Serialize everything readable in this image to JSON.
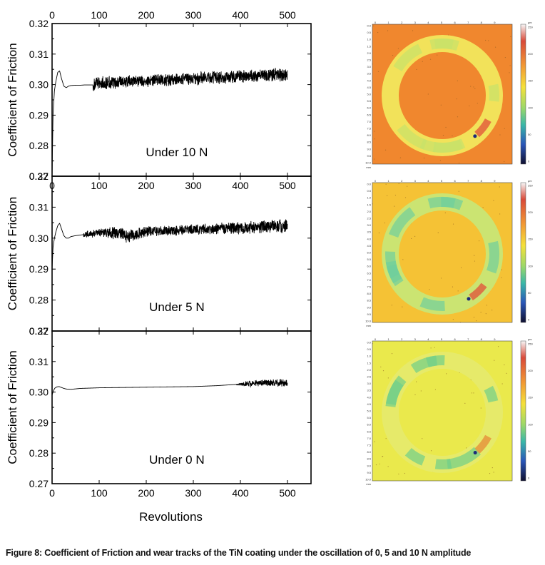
{
  "chart_data": [
    {
      "type": "line",
      "annotation": "Under 10 N",
      "ylabel": "Coefficient of Friction",
      "xlabel": "",
      "top_axis": true,
      "x_ticks": [
        "0",
        "100",
        "200",
        "300",
        "400",
        "500"
      ],
      "y_ticks": [
        "0.27",
        "0.28",
        "0.29",
        "0.30",
        "0.31",
        "0.32"
      ],
      "xlim": [
        0,
        550
      ],
      "ylim": [
        0.27,
        0.32
      ],
      "series": [
        {
          "x": [
            0,
            2,
            5,
            8,
            12,
            16,
            20,
            25,
            30,
            35,
            40,
            50,
            60,
            70,
            80,
            90,
            100,
            150,
            200,
            250,
            300,
            350,
            400,
            450,
            500
          ],
          "y": [
            0.27,
            0.29,
            0.298,
            0.301,
            0.304,
            0.3045,
            0.302,
            0.2995,
            0.299,
            0.2995,
            0.2997,
            0.2998,
            0.2998,
            0.2999,
            0.2999,
            0.2999,
            0.3005,
            0.3008,
            0.3012,
            0.3016,
            0.3019,
            0.3023,
            0.3026,
            0.303,
            0.3033
          ],
          "noise_from": 95,
          "noise_amplitude": [
            [
              95,
              0.0025
            ],
            [
              200,
              0.0022
            ],
            [
              300,
              0.0025
            ],
            [
              400,
              0.0023
            ],
            [
              500,
              0.0025
            ]
          ]
        }
      ]
    },
    {
      "type": "line",
      "annotation": "Under 5 N",
      "ylabel": "Coefficient of Friction",
      "xlabel": "",
      "top_axis": false,
      "x_ticks": [],
      "y_ticks": [
        "0.27",
        "0.28",
        "0.29",
        "0.30",
        "0.31",
        "0.32"
      ],
      "xlim": [
        0,
        550
      ],
      "ylim": [
        0.27,
        0.32
      ],
      "series": [
        {
          "x": [
            0,
            2,
            5,
            8,
            12,
            16,
            20,
            25,
            30,
            35,
            40,
            50,
            60,
            70,
            80,
            100,
            150,
            160,
            170,
            200,
            250,
            300,
            350,
            400,
            450,
            500
          ],
          "y": [
            0.29,
            0.297,
            0.3,
            0.302,
            0.304,
            0.3048,
            0.303,
            0.3008,
            0.3,
            0.3,
            0.3005,
            0.3008,
            0.301,
            0.3012,
            0.3014,
            0.3018,
            0.3015,
            0.3005,
            0.301,
            0.3022,
            0.3024,
            0.3028,
            0.303,
            0.3033,
            0.3036,
            0.304
          ],
          "noise_from": 75,
          "noise_amplitude": [
            [
              75,
              0.0012
            ],
            [
              100,
              0.0015
            ],
            [
              150,
              0.0025
            ],
            [
              200,
              0.0018
            ],
            [
              300,
              0.0018
            ],
            [
              400,
              0.0022
            ],
            [
              500,
              0.0025
            ]
          ]
        }
      ]
    },
    {
      "type": "line",
      "annotation": "Under 0 N",
      "ylabel": "Coefficient of Friction",
      "xlabel": "Revolutions",
      "top_axis": false,
      "x_ticks": [
        "0",
        "100",
        "200",
        "300",
        "400",
        "500"
      ],
      "y_ticks": [
        "0.27",
        "0.28",
        "0.29",
        "0.30",
        "0.31",
        "0.32"
      ],
      "xlim": [
        0,
        550
      ],
      "ylim": [
        0.27,
        0.32
      ],
      "series": [
        {
          "x": [
            0,
            3,
            6,
            10,
            15,
            20,
            25,
            30,
            40,
            60,
            100,
            150,
            200,
            250,
            300,
            350,
            400,
            450,
            500
          ],
          "y": [
            0.299,
            0.3005,
            0.3013,
            0.3017,
            0.3018,
            0.3015,
            0.3012,
            0.301,
            0.3009,
            0.3012,
            0.3014,
            0.3015,
            0.3016,
            0.3017,
            0.3018,
            0.3021,
            0.3026,
            0.303,
            0.303
          ],
          "noise_from": 400,
          "noise_amplitude": [
            [
              395,
              0.0002
            ],
            [
              410,
              0.001
            ],
            [
              450,
              0.0012
            ],
            [
              500,
              0.0015
            ]
          ]
        }
      ]
    }
  ],
  "wear_maps": [
    {
      "name": "wear-track-10n",
      "background": "#f0872e",
      "ring_color": "#f2e25a",
      "ring_accent": "#c8e36a",
      "hot_spot": "#e2503a",
      "tick_labels": [
        "0.0",
        "0.5",
        "1.0",
        "1.5",
        "2.0",
        "2.5",
        "3.0",
        "3.5",
        "4.0",
        "4.5",
        "5.0",
        "5.5",
        "6.0",
        "6.5",
        "7.0",
        "7.5",
        "8.0",
        "8.5",
        "9.0",
        "9.5",
        "10.0"
      ],
      "x_tick_labels": [
        "0",
        "1",
        "2",
        "3",
        "4",
        "5",
        "6",
        "7",
        "8",
        "9"
      ],
      "unit": "mm",
      "colorbar_unit": "μm",
      "colorbar_ticks": [
        "250",
        "200",
        "150",
        "100",
        "50",
        "0"
      ]
    },
    {
      "name": "wear-track-5n",
      "background": "#f5c235",
      "ring_color": "#cbe472",
      "ring_accent": "#6fcf9c",
      "hot_spot": "#e2503a",
      "tick_labels": [
        "0.0",
        "0.5",
        "1.0",
        "1.5",
        "2.0",
        "2.5",
        "3.0",
        "3.5",
        "4.0",
        "4.5",
        "5.0",
        "5.5",
        "6.0",
        "6.5",
        "7.0",
        "7.5",
        "8.0",
        "8.5",
        "9.0",
        "9.5",
        "10.0"
      ],
      "x_tick_labels": [
        "0",
        "1",
        "2",
        "3",
        "4",
        "5",
        "6",
        "7",
        "8",
        "9"
      ],
      "unit": "mm",
      "colorbar_unit": "μm",
      "colorbar_ticks": [
        "250",
        "200",
        "150",
        "100",
        "50",
        "0"
      ]
    },
    {
      "name": "wear-track-0n",
      "background": "#eae94c",
      "ring_color": "#e6ea6a",
      "ring_accent": "#6fcf8a",
      "hot_spot": "#e58a38",
      "tick_labels": [
        "0.0",
        "0.5",
        "1.0",
        "1.5",
        "2.0",
        "2.5",
        "3.0",
        "3.5",
        "4.0",
        "4.5",
        "5.0",
        "5.5",
        "6.0",
        "6.5",
        "7.0",
        "7.5",
        "8.0",
        "8.5",
        "9.0",
        "9.5",
        "10.0"
      ],
      "x_tick_labels": [
        "0",
        "1",
        "2",
        "3",
        "4",
        "5",
        "6",
        "7",
        "8",
        "9"
      ],
      "unit": "mm",
      "colorbar_unit": "μm",
      "colorbar_ticks": [
        "250",
        "200",
        "150",
        "100",
        "50",
        "0"
      ]
    }
  ],
  "caption": "Figure 8: Coefficient of Friction and wear tracks of the TiN coating under the oscillation of 0, 5 and 10 N amplitude"
}
